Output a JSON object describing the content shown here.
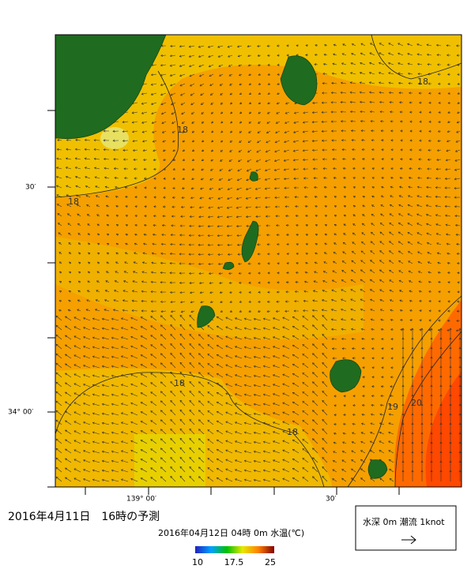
{
  "map": {
    "y_labels": [
      "30′",
      "34° 00′"
    ],
    "x_labels": [
      "139° 00′",
      "30′"
    ],
    "contour_labels": [
      "18",
      "18",
      "18",
      "18",
      "18",
      "19",
      "20"
    ]
  },
  "caption": "2016年4月11日　16時の予測",
  "colorbar": {
    "title": "2016年04月12日 04時 0m 水温(℃)",
    "ticks": [
      10,
      17.5,
      25
    ]
  },
  "legend": {
    "label": "水深 0m 潮流 1knot"
  }
}
